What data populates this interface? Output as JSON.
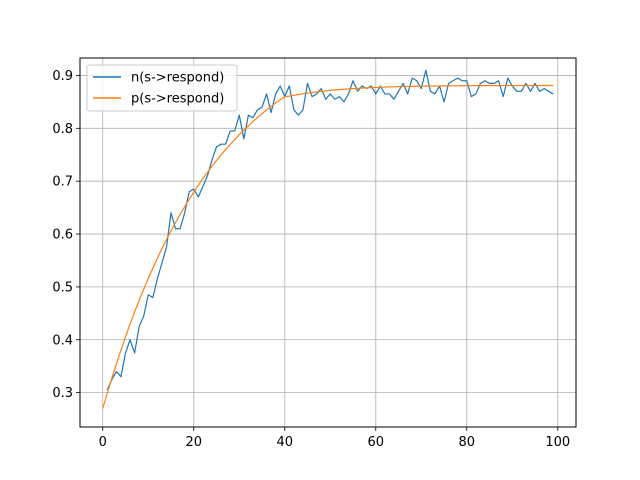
{
  "chart_data": {
    "type": "line",
    "title": "",
    "xlabel": "",
    "ylabel": "",
    "xlim": [
      -5,
      104
    ],
    "ylim": [
      0.235,
      0.933
    ],
    "xticks": [
      0,
      20,
      40,
      60,
      80,
      100
    ],
    "yticks": [
      0.3,
      0.4,
      0.5,
      0.6,
      0.7,
      0.8,
      0.9
    ],
    "xtick_labels": [
      "0",
      "20",
      "40",
      "60",
      "80",
      "100"
    ],
    "ytick_labels": [
      "0.3",
      "0.4",
      "0.5",
      "0.6",
      "0.7",
      "0.8",
      "0.9"
    ],
    "grid": true,
    "legend_position": "top-left",
    "series": [
      {
        "name": "n(s->respond)",
        "color": "#1f77b4",
        "x": [
          1,
          2,
          3,
          4,
          5,
          6,
          7,
          8,
          9,
          10,
          11,
          12,
          13,
          14,
          15,
          16,
          17,
          18,
          19,
          20,
          21,
          22,
          23,
          24,
          25,
          26,
          27,
          28,
          29,
          30,
          31,
          32,
          33,
          34,
          35,
          36,
          37,
          38,
          39,
          40,
          41,
          42,
          43,
          44,
          45,
          46,
          47,
          48,
          49,
          50,
          51,
          52,
          53,
          54,
          55,
          56,
          57,
          58,
          59,
          60,
          61,
          62,
          63,
          64,
          65,
          66,
          67,
          68,
          69,
          70,
          71,
          72,
          73,
          74,
          75,
          76,
          77,
          78,
          79,
          80,
          81,
          82,
          83,
          84,
          85,
          86,
          87,
          88,
          89,
          90,
          91,
          92,
          93,
          94,
          95,
          96,
          97,
          98,
          99
        ],
        "values": [
          0.305,
          0.325,
          0.34,
          0.33,
          0.375,
          0.4,
          0.375,
          0.425,
          0.445,
          0.485,
          0.48,
          0.515,
          0.545,
          0.575,
          0.64,
          0.61,
          0.61,
          0.64,
          0.68,
          0.685,
          0.67,
          0.69,
          0.71,
          0.74,
          0.765,
          0.77,
          0.77,
          0.795,
          0.795,
          0.825,
          0.78,
          0.825,
          0.82,
          0.835,
          0.84,
          0.865,
          0.83,
          0.865,
          0.88,
          0.86,
          0.88,
          0.835,
          0.825,
          0.835,
          0.885,
          0.86,
          0.865,
          0.875,
          0.855,
          0.865,
          0.855,
          0.86,
          0.85,
          0.865,
          0.89,
          0.87,
          0.88,
          0.875,
          0.88,
          0.865,
          0.88,
          0.865,
          0.865,
          0.855,
          0.87,
          0.885,
          0.865,
          0.895,
          0.89,
          0.875,
          0.91,
          0.87,
          0.865,
          0.88,
          0.85,
          0.885,
          0.89,
          0.895,
          0.89,
          0.89,
          0.86,
          0.865,
          0.885,
          0.89,
          0.885,
          0.885,
          0.89,
          0.86,
          0.895,
          0.88,
          0.87,
          0.87,
          0.885,
          0.87,
          0.885,
          0.87,
          0.875,
          0.87,
          0.865
        ]
      },
      {
        "name": "p(s->respond)",
        "color": "#ff7f0e",
        "x": [
          0,
          1,
          2,
          3,
          4,
          5,
          6,
          7,
          8,
          9,
          10,
          11,
          12,
          13,
          14,
          15,
          16,
          17,
          18,
          19,
          20,
          21,
          22,
          23,
          24,
          25,
          26,
          27,
          28,
          29,
          30,
          31,
          32,
          33,
          34,
          35,
          36,
          37,
          38,
          39,
          40,
          41,
          42,
          43,
          44,
          45,
          46,
          47,
          48,
          49,
          50,
          51,
          52,
          53,
          54,
          55,
          56,
          57,
          58,
          59,
          60,
          61,
          62,
          63,
          64,
          65,
          66,
          67,
          68,
          69,
          70,
          71,
          72,
          73,
          74,
          75,
          76,
          77,
          78,
          79,
          80,
          81,
          82,
          83,
          84,
          85,
          86,
          87,
          88,
          89,
          90,
          91,
          92,
          93,
          94,
          95,
          96,
          97,
          98,
          99
        ],
        "values": [
          0.27,
          0.2993,
          0.3275,
          0.3546,
          0.3806,
          0.4056,
          0.4295,
          0.4525,
          0.4745,
          0.4957,
          0.516,
          0.5355,
          0.5542,
          0.5722,
          0.5894,
          0.606,
          0.6218,
          0.6371,
          0.6517,
          0.6658,
          0.6793,
          0.6922,
          0.7047,
          0.7166,
          0.7281,
          0.7391,
          0.7497,
          0.7598,
          0.7696,
          0.7789,
          0.7879,
          0.7965,
          0.8048,
          0.8127,
          0.8204,
          0.8277,
          0.8347,
          0.8414,
          0.8479,
          0.8541,
          0.86,
          0.8609,
          0.8624,
          0.8638,
          0.8652,
          0.8665,
          0.8677,
          0.8688,
          0.8698,
          0.8708,
          0.8716,
          0.8725,
          0.8732,
          0.8739,
          0.8745,
          0.8751,
          0.8756,
          0.8761,
          0.8765,
          0.877,
          0.8773,
          0.8777,
          0.878,
          0.8783,
          0.8785,
          0.8788,
          0.879,
          0.8792,
          0.8794,
          0.8795,
          0.8797,
          0.8798,
          0.8799,
          0.88,
          0.8801,
          0.8802,
          0.8803,
          0.8804,
          0.8804,
          0.8805,
          0.8806,
          0.8806,
          0.8807,
          0.8807,
          0.8807,
          0.8808,
          0.8808,
          0.8808,
          0.8809,
          0.8809,
          0.8809,
          0.8809,
          0.8809,
          0.8809,
          0.881,
          0.881,
          0.881,
          0.881,
          0.881,
          0.881
        ]
      }
    ]
  }
}
